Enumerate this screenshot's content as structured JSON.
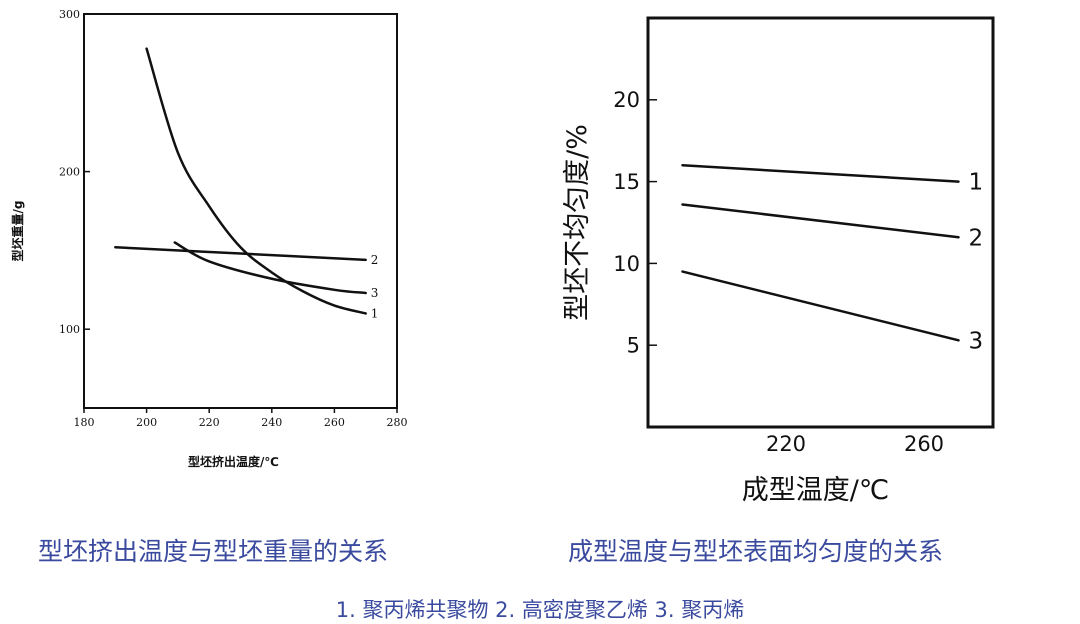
{
  "captions": {
    "left": "型坯挤出温度与型坯重量的关系",
    "right": "成型温度与型坯表面均匀度的关系",
    "legend_note": "1. 聚丙烯共聚物  2. 高密度聚乙烯  3. 聚丙烯"
  },
  "colors": {
    "line": "#111111",
    "caption": "#3a4a9e"
  },
  "chart_data": [
    {
      "type": "line",
      "xlabel": "型坯挤出温度/℃",
      "ylabel": "型坯重量/g",
      "xlim": [
        180,
        280
      ],
      "ylim": [
        50,
        300
      ],
      "xticks": [
        "180",
        "200",
        "220",
        "240",
        "260",
        "280"
      ],
      "yticks": [
        "100",
        "200",
        "300"
      ],
      "series": [
        {
          "name": "1",
          "x": [
            200,
            210,
            220,
            230,
            240,
            250,
            260,
            270
          ],
          "y": [
            278,
            212,
            178,
            152,
            136,
            124,
            115,
            110
          ]
        },
        {
          "name": "2",
          "x": [
            190,
            230,
            270
          ],
          "y": [
            152,
            148,
            144
          ]
        },
        {
          "name": "3",
          "x": [
            209,
            220,
            240,
            260,
            270
          ],
          "y": [
            155,
            143,
            132,
            125,
            123
          ]
        }
      ]
    },
    {
      "type": "line",
      "xlabel": "成型温度/℃",
      "ylabel": "型坯不均匀度/%",
      "xlim": [
        180,
        280
      ],
      "ylim": [
        0,
        25
      ],
      "xticks": [
        "220",
        "260"
      ],
      "yticks": [
        "5",
        "10",
        "15",
        "20"
      ],
      "series": [
        {
          "name": "1",
          "x": [
            190,
            270
          ],
          "y": [
            16.0,
            15.0
          ]
        },
        {
          "name": "2",
          "x": [
            190,
            270
          ],
          "y": [
            13.6,
            11.6
          ]
        },
        {
          "name": "3",
          "x": [
            190,
            270
          ],
          "y": [
            9.5,
            5.3
          ]
        }
      ]
    }
  ]
}
